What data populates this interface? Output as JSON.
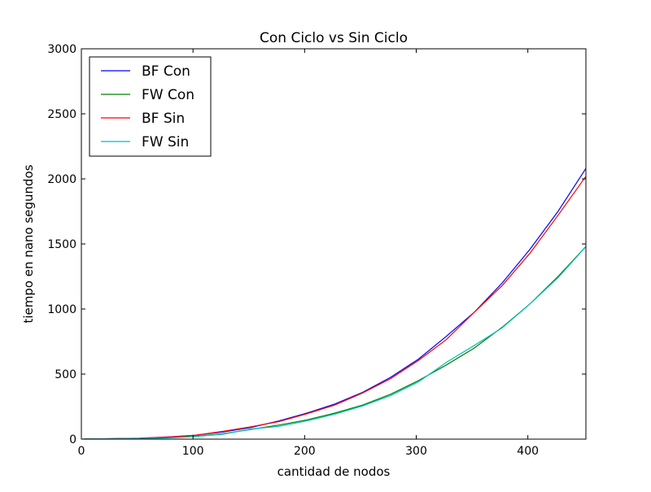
{
  "chart_data": {
    "type": "line",
    "title": "Con Ciclo vs Sin Ciclo",
    "xlabel": "cantidad de nodos",
    "ylabel": "tiempo en nano segundos",
    "xlim": [
      0,
      452
    ],
    "ylim": [
      0,
      3000
    ],
    "x_ticks": [
      0,
      100,
      200,
      300,
      400
    ],
    "y_ticks": [
      0,
      500,
      1000,
      1500,
      2000,
      2500,
      3000
    ],
    "grid": false,
    "legend_position": "top-left",
    "x": [
      2,
      27,
      52,
      77,
      102,
      127,
      152,
      177,
      202,
      227,
      252,
      277,
      302,
      327,
      352,
      377,
      402,
      427,
      452
    ],
    "series": [
      {
        "name": "BF Con",
        "color": "#0000ff",
        "values": [
          1,
          3,
          7,
          17,
          30,
          55,
          90,
          140,
          200,
          270,
          360,
          475,
          615,
          790,
          975,
          1200,
          1460,
          1750,
          2080
        ]
      },
      {
        "name": "FW Con",
        "color": "#008000",
        "values": [
          1,
          3,
          5,
          11,
          22,
          42,
          75,
          108,
          148,
          200,
          262,
          345,
          450,
          570,
          700,
          860,
          1040,
          1250,
          1480
        ]
      },
      {
        "name": "BF Sin",
        "color": "#ff0000",
        "values": [
          1,
          3,
          6,
          15,
          30,
          60,
          95,
          135,
          195,
          262,
          355,
          465,
          605,
          765,
          975,
          1180,
          1430,
          1720,
          2020
        ]
      },
      {
        "name": "FW Sin",
        "color": "#00bfbf",
        "values": [
          1,
          2,
          4,
          9,
          20,
          38,
          78,
          98,
          140,
          192,
          255,
          335,
          440,
          590,
          720,
          855,
          1040,
          1240,
          1480
        ]
      }
    ]
  }
}
